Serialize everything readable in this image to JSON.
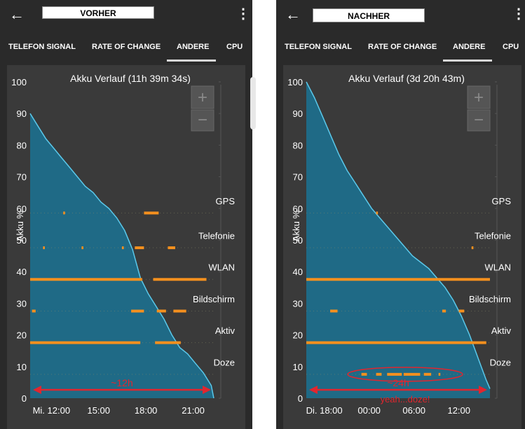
{
  "panels": [
    {
      "label": "VORHER",
      "tabs": [
        "TELEFON SIGNAL",
        "RATE OF CHANGE",
        "ANDERE",
        "CPU"
      ],
      "active_tab": "ANDERE",
      "zoom_in": "+",
      "zoom_out": "−",
      "annotation": "~12h",
      "chart_data": {
        "type": "area",
        "title": "Akku Verlauf (11h 39m 34s)",
        "ylabel": "Akku %",
        "ylim": [
          0,
          100
        ],
        "yticks": [
          "100",
          "90",
          "80",
          "70",
          "60",
          "50",
          "40",
          "30",
          "20",
          "10",
          "0"
        ],
        "xtick_labels": [
          "Mi. 12:00",
          "15:00",
          "18:00",
          "21:00"
        ],
        "x_hours": [
          0,
          0.5,
          1,
          1.5,
          2,
          2.5,
          3,
          3.5,
          4,
          4.5,
          5,
          5.5,
          6,
          6.5,
          7,
          7.5,
          8,
          8.5,
          9,
          9.5,
          10,
          10.5,
          11,
          11.5,
          11.66
        ],
        "battery": [
          90,
          86,
          82,
          79,
          76,
          73,
          70,
          67,
          65,
          62,
          60,
          57,
          53,
          47,
          38,
          33,
          29,
          25,
          20,
          16,
          14,
          11,
          8,
          4,
          0
        ],
        "x_range_hours": [
          0,
          11.66
        ],
        "xtick_hours": [
          1.35,
          4.35,
          7.35,
          10.35
        ],
        "event_rows": [
          {
            "name": "GPS",
            "level": 59
          },
          {
            "name": "Telefonie",
            "level": 48
          },
          {
            "name": "WLAN",
            "level": 38
          },
          {
            "name": "Bildschirm",
            "level": 28
          },
          {
            "name": "Aktiv",
            "level": 18
          },
          {
            "name": "Doze",
            "level": 8
          }
        ],
        "colors": {
          "fill": "#1d6d8a",
          "line": "#5ac8ea",
          "event": "#f5901e",
          "annotation": "#e0262f"
        }
      }
    },
    {
      "label": "NACHHER",
      "tabs": [
        "TELEFON SIGNAL",
        "RATE OF CHANGE",
        "ANDERE",
        "CPU"
      ],
      "active_tab": "ANDERE",
      "zoom_in": "+",
      "zoom_out": "−",
      "annotation": "~24h",
      "annotation2": "yeah...doze!",
      "chart_data": {
        "type": "area",
        "title": "Akku Verlauf (3d 20h 43m)",
        "ylabel": "Akku %",
        "ylim": [
          0,
          100
        ],
        "yticks": [
          "100",
          "90",
          "80",
          "70",
          "60",
          "50",
          "40",
          "30",
          "20",
          "10",
          "0"
        ],
        "xtick_labels": [
          "Di. 18:00",
          "00:00",
          "06:00",
          "12:00"
        ],
        "x_hours": [
          0,
          1,
          2,
          3,
          4,
          5,
          6,
          7,
          8,
          9,
          10,
          11,
          12,
          13,
          14,
          15,
          16,
          17,
          18,
          19,
          20,
          21,
          22,
          22.5
        ],
        "battery": [
          100,
          95,
          89,
          83,
          77,
          72,
          68,
          64,
          60,
          57,
          54,
          51,
          48,
          45,
          43,
          41,
          38,
          35,
          31,
          26,
          20,
          13,
          6,
          3
        ],
        "x_range_hours": [
          0,
          22.5
        ],
        "xtick_hours": [
          2.2,
          7.7,
          13.2,
          18.7
        ],
        "event_rows": [
          {
            "name": "GPS",
            "level": 59
          },
          {
            "name": "Telefonie",
            "level": 48
          },
          {
            "name": "WLAN",
            "level": 38
          },
          {
            "name": "Bildschirm",
            "level": 28
          },
          {
            "name": "Aktiv",
            "level": 18
          },
          {
            "name": "Doze",
            "level": 8
          }
        ],
        "colors": {
          "fill": "#1d6d8a",
          "line": "#5ac8ea",
          "event": "#f5901e",
          "annotation": "#e0262f"
        }
      }
    }
  ]
}
